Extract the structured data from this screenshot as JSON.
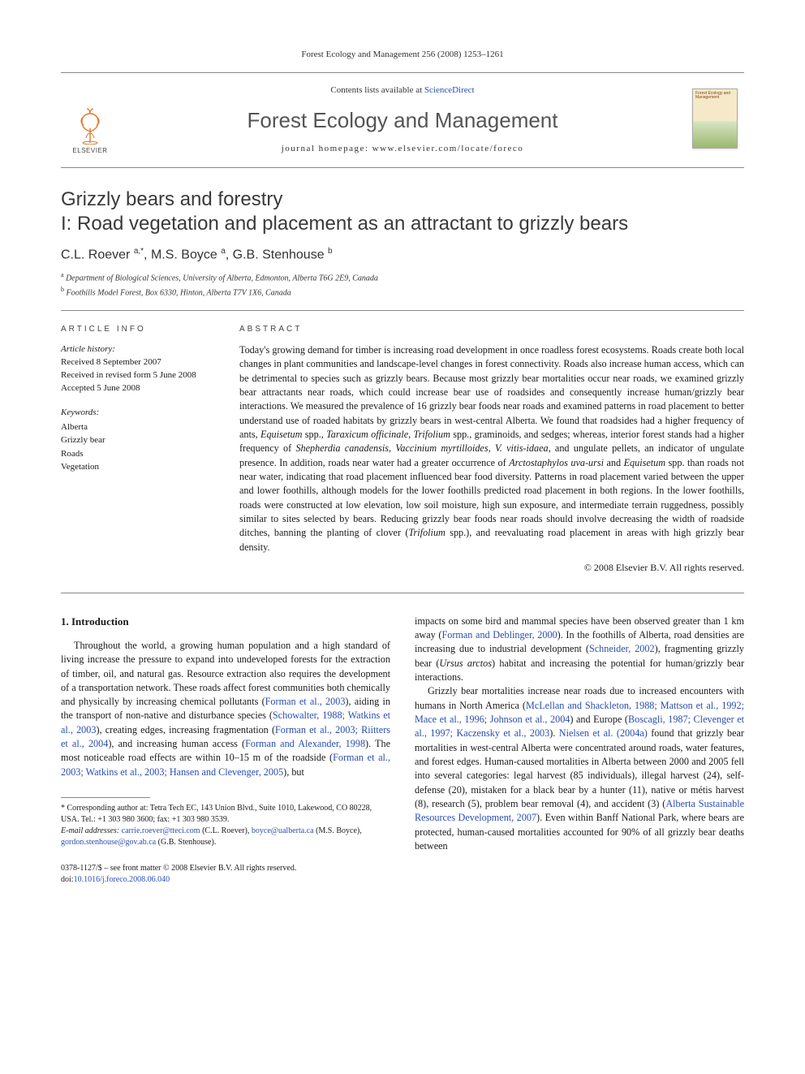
{
  "citation": "Forest Ecology and Management 256 (2008) 1253–1261",
  "header": {
    "contents_prefix": "Contents lists available at ",
    "contents_link": "ScienceDirect",
    "journal": "Forest Ecology and Management",
    "homepage": "journal homepage: www.elsevier.com/locate/foreco",
    "publisher": "ELSEVIER",
    "cover_title": "Forest Ecology and Management"
  },
  "title_line1": "Grizzly bears and forestry",
  "title_line2": "I: Road vegetation and placement as an attractant to grizzly bears",
  "authors_html": "C.L. Roever <sup>a,*</sup>, M.S. Boyce <sup>a</sup>, G.B. Stenhouse <sup>b</sup>",
  "affiliations": {
    "a": "Department of Biological Sciences, University of Alberta, Edmonton, Alberta T6G 2E9, Canada",
    "b": "Foothills Model Forest, Box 6330, Hinton, Alberta T7V 1X6, Canada"
  },
  "article_info": {
    "label": "ARTICLE INFO",
    "history_heading": "Article history:",
    "received": "Received 8 September 2007",
    "revised": "Received in revised form 5 June 2008",
    "accepted": "Accepted 5 June 2008",
    "keywords_heading": "Keywords:",
    "keywords": [
      "Alberta",
      "Grizzly bear",
      "Roads",
      "Vegetation"
    ]
  },
  "abstract": {
    "label": "ABSTRACT",
    "text_html": "Today's growing demand for timber is increasing road development in once roadless forest ecosystems. Roads create both local changes in plant communities and landscape-level changes in forest connectivity. Roads also increase human access, which can be detrimental to species such as grizzly bears. Because most grizzly bear mortalities occur near roads, we examined grizzly bear attractants near roads, which could increase bear use of roadsides and consequently increase human/grizzly bear interactions. We measured the prevalence of 16 grizzly bear foods near roads and examined patterns in road placement to better understand use of roaded habitats by grizzly bears in west-central Alberta. We found that roadsides had a higher frequency of ants, <em>Equisetum</em> spp., <em>Taraxicum officinale</em>, <em>Trifolium</em> spp., graminoids, and sedges; whereas, interior forest stands had a higher frequency of <em>Shepherdia canadensis</em>, <em>Vaccinium myrtilloides</em>, <em>V. vitis-idaea</em>, and ungulate pellets, an indicator of ungulate presence. In addition, roads near water had a greater occurrence of <em>Arctostaphylos uva-ursi</em> and <em>Equisetum</em> spp. than roads not near water, indicating that road placement influenced bear food diversity. Patterns in road placement varied between the upper and lower foothills, although models for the lower foothills predicted road placement in both regions. In the lower foothills, roads were constructed at low elevation, low soil moisture, high sun exposure, and intermediate terrain ruggedness, possibly similar to sites selected by bears. Reducing grizzly bear foods near roads should involve decreasing the width of roadside ditches, banning the planting of clover (<em>Trifolium</em> spp.), and reevaluating road placement in areas with high grizzly bear density.",
    "copyright": "© 2008 Elsevier B.V. All rights reserved."
  },
  "intro": {
    "heading": "1. Introduction",
    "col1_html": "Throughout the world, a growing human population and a high standard of living increase the pressure to expand into undeveloped forests for the extraction of timber, oil, and natural gas. Resource extraction also requires the development of a transportation network. These roads affect forest communities both chemically and physically by increasing chemical pollutants (<a class='ref-link'>Forman et al., 2003</a>), aiding in the transport of non-native and disturbance species (<a class='ref-link'>Schowalter, 1988; Watkins et al., 2003</a>), creating edges, increasing fragmentation (<a class='ref-link'>Forman et al., 2003; Riitters et al., 2004</a>), and increasing human access (<a class='ref-link'>Forman and Alexander, 1998</a>). The most noticeable road effects are within 10–15 m of the roadside (<a class='ref-link'>Forman et al., 2003; Watkins et al., 2003; Hansen and Clevenger, 2005</a>), but",
    "col2_p1_html": "impacts on some bird and mammal species have been observed greater than 1 km away (<a class='ref-link'>Forman and Deblinger, 2000</a>). In the foothills of Alberta, road densities are increasing due to industrial development (<a class='ref-link'>Schneider, 2002</a>), fragmenting grizzly bear (<em>Ursus arctos</em>) habitat and increasing the potential for human/grizzly bear interactions.",
    "col2_p2_html": "Grizzly bear mortalities increase near roads due to increased encounters with humans in North America (<a class='ref-link'>McLellan and Shackleton, 1988; Mattson et al., 1992; Mace et al., 1996; Johnson et al., 2004</a>) and Europe (<a class='ref-link'>Boscagli, 1987; Clevenger et al., 1997; Kaczensky et al., 2003</a>). <a class='ref-link'>Nielsen et al. (2004a)</a> found that grizzly bear mortalities in west-central Alberta were concentrated around roads, water features, and forest edges. Human-caused mortalities in Alberta between 2000 and 2005 fell into several categories: legal harvest (85 individuals), illegal harvest (24), self-defense (20), mistaken for a black bear by a hunter (11), native or métis harvest (8), research (5), problem bear removal (4), and accident (3) (<a class='ref-link'>Alberta Sustainable Resources Development, 2007</a>). Even within Banff National Park, where bears are protected, human-caused mortalities accounted for 90% of all grizzly bear deaths between"
  },
  "footnotes": {
    "corresponding": "* Corresponding author at: Tetra Tech EC, 143 Union Blvd., Suite 1010, Lakewood, CO 80228, USA. Tel.: +1 303 980 3600; fax: +1 303 980 3539.",
    "emails_label": "E-mail addresses:",
    "email1": "carrie.roever@tteci.com",
    "email1_who": " (C.L. Roever), ",
    "email2": "boyce@ualberta.ca",
    "email2_who": " (M.S. Boyce), ",
    "email3": "gordon.stenhouse@gov.ab.ca",
    "email3_who": " (G.B. Stenhouse)."
  },
  "bottom": {
    "issn": "0378-1127/$ – see front matter © 2008 Elsevier B.V. All rights reserved.",
    "doi_label": "doi:",
    "doi": "10.1016/j.foreco.2008.06.040"
  },
  "colors": {
    "link": "#2a4db0",
    "text": "#1a1a1a",
    "rule": "#888888",
    "journal_heading": "#555555"
  }
}
